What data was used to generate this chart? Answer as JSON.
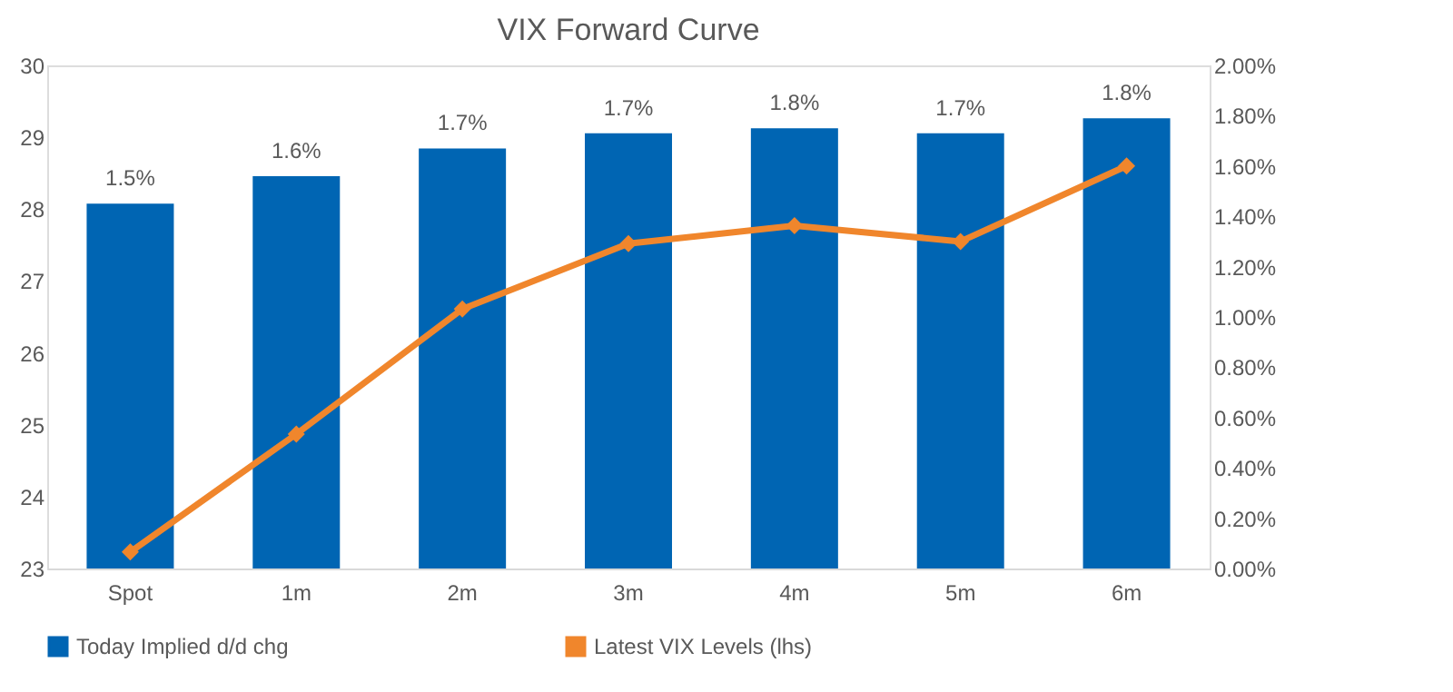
{
  "chart_data": {
    "type": "bar",
    "title": "VIX Forward Curve",
    "categories": [
      "Spot",
      "1m",
      "2m",
      "3m",
      "4m",
      "5m",
      "6m"
    ],
    "series": [
      {
        "name": "Today Implied d/d chg",
        "axis": "y2",
        "color": "#0065b3",
        "values": [
          1.45,
          1.56,
          1.67,
          1.73,
          1.75,
          1.73,
          1.79
        ],
        "value_labels": [
          "1.5%",
          "1.6%",
          "1.7%",
          "1.7%",
          "1.8%",
          "1.7%",
          "1.8%"
        ]
      },
      {
        "name": "Latest VIX Levels (lhs)",
        "type": "line",
        "axis": "y",
        "color": "#f0862c",
        "marker": "diamond",
        "line_style": "solid",
        "values": [
          23.23,
          24.87,
          26.61,
          27.52,
          27.77,
          27.55,
          28.6
        ]
      }
    ],
    "ylim": [
      23,
      30
    ],
    "yticks": [
      23,
      24,
      25,
      26,
      27,
      28,
      29,
      30
    ],
    "y2lim": [
      0,
      2
    ],
    "y2ticks": [
      {
        "value": 0,
        "label": "0.00%"
      },
      {
        "value": 0.2,
        "label": "0.20%"
      },
      {
        "value": 0.4,
        "label": "0.40%"
      },
      {
        "value": 0.6,
        "label": "0.60%"
      },
      {
        "value": 0.8,
        "label": "0.80%"
      },
      {
        "value": 1.0,
        "label": "1.00%"
      },
      {
        "value": 1.2,
        "label": "1.20%"
      },
      {
        "value": 1.4,
        "label": "1.40%"
      },
      {
        "value": 1.6,
        "label": "1.60%"
      },
      {
        "value": 1.8,
        "label": "1.80%"
      },
      {
        "value": 2.0,
        "label": "2.00%"
      }
    ],
    "grid": false,
    "legend": "bottom"
  }
}
